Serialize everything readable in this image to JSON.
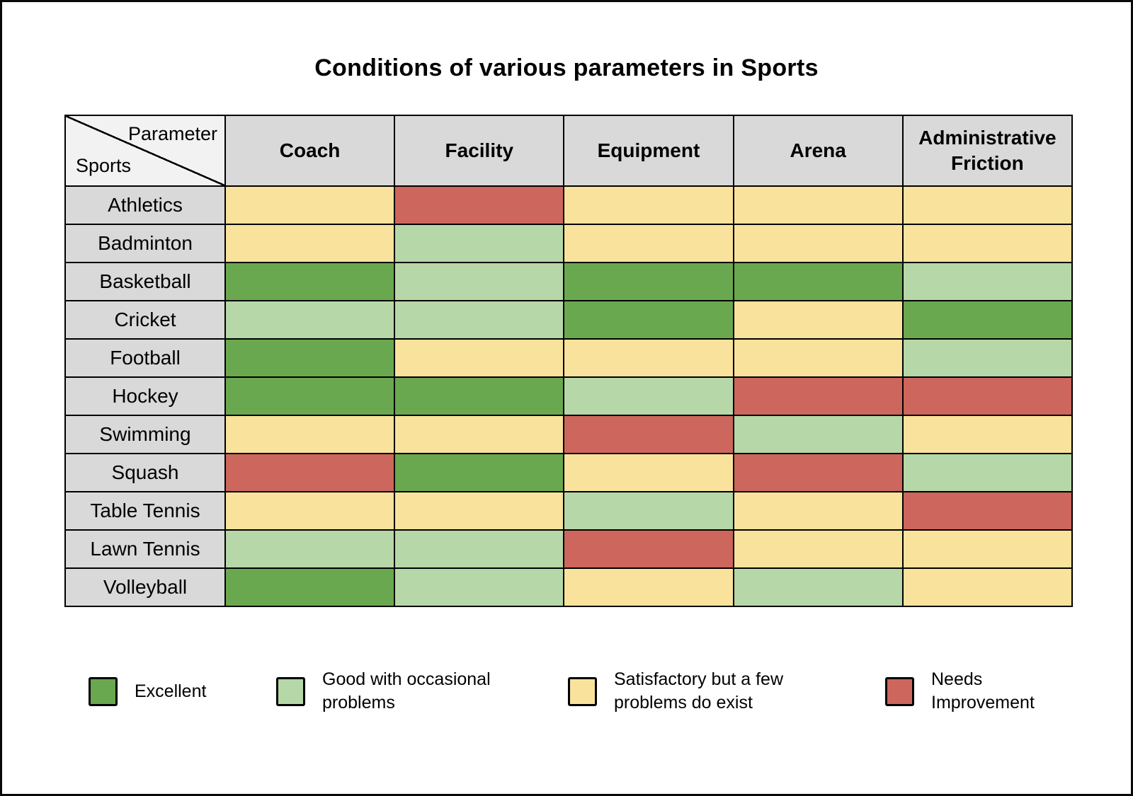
{
  "title": "Conditions of various parameters in Sports",
  "corner": {
    "top_right_label": "Parameter",
    "bottom_left_label": "Sports"
  },
  "colors": {
    "excellent": "#6aa84f",
    "good": "#b6d7a8",
    "satisfactory": "#f9e29c",
    "needs_improvement": "#cd665c",
    "header_bg": "#d9d9d9",
    "row_label_bg": "#d9d9d9",
    "corner_bg": "#f2f2f2",
    "border": "#000000"
  },
  "legend": [
    {
      "key": "excellent",
      "label": "Excellent"
    },
    {
      "key": "good",
      "label": "Good with occasional problems"
    },
    {
      "key": "satisfactory",
      "label": "Satisfactory but a few problems do exist"
    },
    {
      "key": "needs_improvement",
      "label": "Needs Improvement"
    }
  ],
  "chart_data": {
    "type": "heatmap",
    "title": "Conditions of various parameters in Sports",
    "x_labels": [
      "Coach",
      "Facility",
      "Equipment",
      "Arena",
      "Administrative Friction"
    ],
    "y_labels": [
      "Athletics",
      "Badminton",
      "Basketball",
      "Cricket",
      "Football",
      "Hockey",
      "Swimming",
      "Squash",
      "Table Tennis",
      "Lawn Tennis",
      "Volleyball"
    ],
    "value_scale": {
      "excellent": "Excellent",
      "good": "Good with occasional problems",
      "satisfactory": "Satisfactory but a few problems do exist",
      "needs_improvement": "Needs Improvement"
    },
    "values": [
      [
        "satisfactory",
        "needs_improvement",
        "satisfactory",
        "satisfactory",
        "satisfactory"
      ],
      [
        "satisfactory",
        "good",
        "satisfactory",
        "satisfactory",
        "satisfactory"
      ],
      [
        "excellent",
        "good",
        "excellent",
        "excellent",
        "good"
      ],
      [
        "good",
        "good",
        "excellent",
        "satisfactory",
        "excellent"
      ],
      [
        "excellent",
        "satisfactory",
        "satisfactory",
        "satisfactory",
        "good"
      ],
      [
        "excellent",
        "excellent",
        "good",
        "needs_improvement",
        "needs_improvement"
      ],
      [
        "satisfactory",
        "satisfactory",
        "needs_improvement",
        "good",
        "satisfactory"
      ],
      [
        "needs_improvement",
        "excellent",
        "satisfactory",
        "needs_improvement",
        "good"
      ],
      [
        "satisfactory",
        "satisfactory",
        "good",
        "satisfactory",
        "needs_improvement"
      ],
      [
        "good",
        "good",
        "needs_improvement",
        "satisfactory",
        "satisfactory"
      ],
      [
        "excellent",
        "good",
        "satisfactory",
        "good",
        "satisfactory"
      ]
    ],
    "legend_position": "bottom"
  }
}
